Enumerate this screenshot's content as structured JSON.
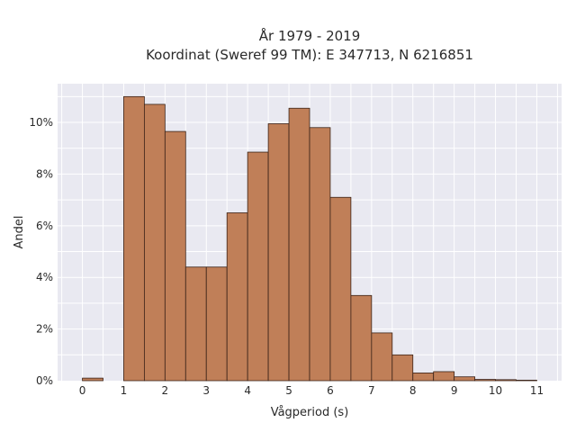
{
  "chart_data": {
    "type": "bar",
    "title_line1": "År 1979 - 2019",
    "title_line2": "Koordinat (Sweref 99 TM): E 347713, N 6216851",
    "xlabel": "Vågperiod (s)",
    "ylabel": "Andel",
    "xlim": [
      -0.6,
      11.6
    ],
    "ylim": [
      0,
      11.5
    ],
    "x_ticks": [
      "0",
      "1",
      "2",
      "3",
      "4",
      "5",
      "6",
      "7",
      "8",
      "9",
      "10",
      "11"
    ],
    "y_ticks": [
      "0%",
      "2%",
      "4%",
      "6%",
      "8%",
      "10%"
    ],
    "bin_width": 0.5,
    "bins": [
      {
        "x0": 0.0,
        "value": 0.1
      },
      {
        "x0": 1.0,
        "value": 11.0
      },
      {
        "x0": 1.5,
        "value": 10.7
      },
      {
        "x0": 2.0,
        "value": 9.65
      },
      {
        "x0": 2.5,
        "value": 4.4
      },
      {
        "x0": 3.0,
        "value": 4.4
      },
      {
        "x0": 3.5,
        "value": 6.5
      },
      {
        "x0": 4.0,
        "value": 8.85
      },
      {
        "x0": 4.5,
        "value": 9.95
      },
      {
        "x0": 5.0,
        "value": 10.55
      },
      {
        "x0": 5.5,
        "value": 9.8
      },
      {
        "x0": 6.0,
        "value": 7.1
      },
      {
        "x0": 6.5,
        "value": 3.3
      },
      {
        "x0": 7.0,
        "value": 1.85
      },
      {
        "x0": 7.5,
        "value": 1.0
      },
      {
        "x0": 8.0,
        "value": 0.3
      },
      {
        "x0": 8.5,
        "value": 0.35
      },
      {
        "x0": 9.0,
        "value": 0.15
      },
      {
        "x0": 9.5,
        "value": 0.05
      },
      {
        "x0": 10.0,
        "value": 0.04
      },
      {
        "x0": 10.5,
        "value": 0.02
      }
    ],
    "grid": true,
    "colors": {
      "bar": "#c07f58",
      "bar_edge": "#3a2218",
      "plot_bg": "#e9e9f1",
      "grid": "#ffffff"
    }
  }
}
